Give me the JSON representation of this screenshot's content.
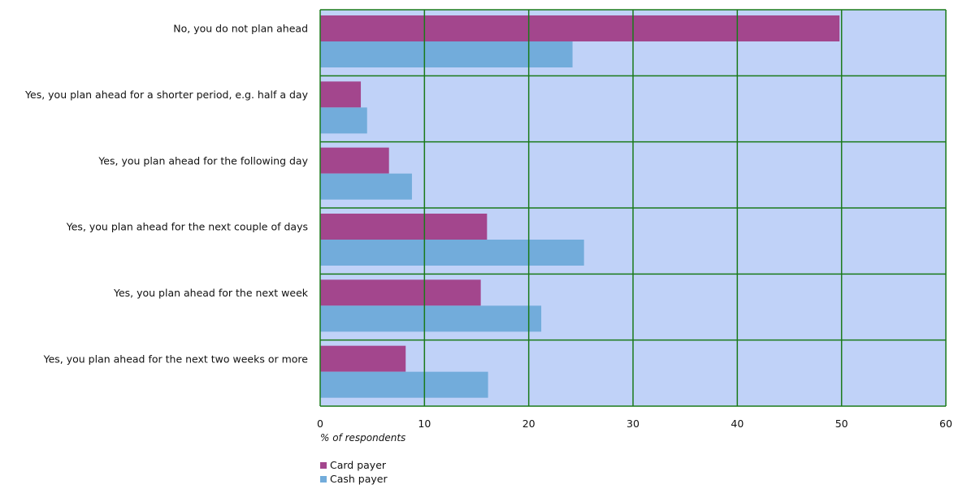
{
  "chart_data": {
    "type": "bar",
    "orientation": "horizontal",
    "categories": [
      "No, you do not plan ahead",
      "Yes, you plan ahead for a shorter period, e.g. half a day",
      "Yes, you plan ahead for the following day",
      "Yes, you plan ahead for the next couple of days",
      "Yes, you plan ahead for the next week",
      "Yes, you plan ahead for the next two weeks or more"
    ],
    "series": [
      {
        "name": "Card payer",
        "color": "#a3468d",
        "values": [
          49.8,
          3.9,
          6.6,
          16.0,
          15.4,
          8.2
        ]
      },
      {
        "name": "Cash payer",
        "color": "#72acdb",
        "values": [
          24.2,
          4.5,
          8.8,
          25.3,
          21.2,
          16.1
        ]
      }
    ],
    "xlabel": "% of respondents",
    "xlim": [
      0,
      60
    ],
    "xticks": [
      "0",
      "10",
      "20",
      "30",
      "40",
      "50",
      "60"
    ],
    "grid": true,
    "legend_position": "bottom-left",
    "plot_background": "#c0d2f8",
    "grid_color": "#1a7a1a"
  }
}
